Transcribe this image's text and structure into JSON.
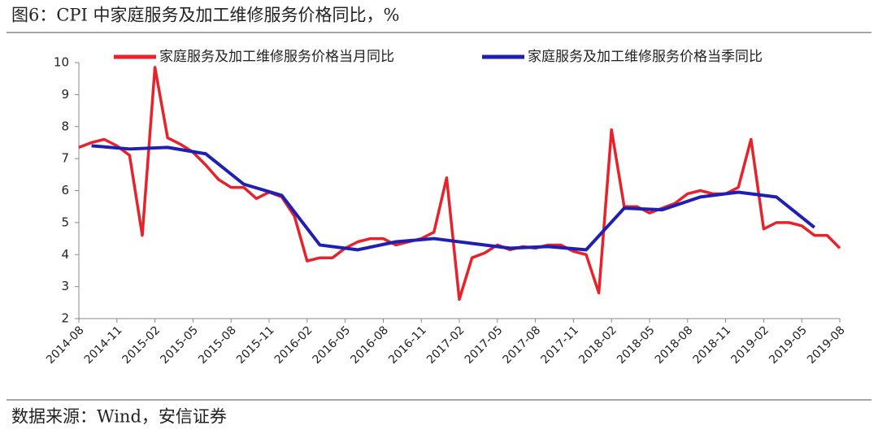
{
  "chart_data": {
    "type": "line",
    "title": "图6：CPI 中家庭服务及加工维修服务价格同比，%",
    "source": "数据来源：Wind，安信证券",
    "xlim": [
      "2014-08",
      "2019-08"
    ],
    "xticks": [
      "2014-08",
      "2014-11",
      "2015-02",
      "2015-05",
      "2015-08",
      "2015-11",
      "2016-02",
      "2016-05",
      "2016-08",
      "2016-11",
      "2017-02",
      "2017-05",
      "2017-08",
      "2017-11",
      "2018-02",
      "2018-05",
      "2018-08",
      "2018-11",
      "2019-02",
      "2019-05",
      "2019-08"
    ],
    "ylim": [
      2,
      10
    ],
    "yticks": [
      2,
      3,
      4,
      5,
      6,
      7,
      8,
      9,
      10
    ],
    "legend": "top",
    "series": [
      {
        "name": "家庭服务及加工维修服务价格当月同比",
        "color": "#e8222a",
        "x": [
          "2014-08",
          "2014-09",
          "2014-10",
          "2014-11",
          "2014-12",
          "2015-01",
          "2015-02",
          "2015-03",
          "2015-04",
          "2015-05",
          "2015-06",
          "2015-07",
          "2015-08",
          "2015-09",
          "2015-10",
          "2015-11",
          "2015-12",
          "2016-01",
          "2016-02",
          "2016-03",
          "2016-04",
          "2016-05",
          "2016-06",
          "2016-07",
          "2016-08",
          "2016-09",
          "2016-10",
          "2016-11",
          "2016-12",
          "2017-01",
          "2017-02",
          "2017-03",
          "2017-04",
          "2017-05",
          "2017-06",
          "2017-07",
          "2017-08",
          "2017-09",
          "2017-10",
          "2017-11",
          "2017-12",
          "2018-01",
          "2018-02",
          "2018-03",
          "2018-04",
          "2018-05",
          "2018-06",
          "2018-07",
          "2018-08",
          "2018-09",
          "2018-10",
          "2018-11",
          "2018-12",
          "2019-01",
          "2019-02",
          "2019-03",
          "2019-04",
          "2019-05",
          "2019-06",
          "2019-07",
          "2019-08"
        ],
        "values": [
          7.35,
          7.5,
          7.6,
          7.4,
          7.1,
          4.6,
          9.85,
          7.65,
          7.45,
          7.2,
          6.8,
          6.35,
          6.1,
          6.1,
          5.75,
          5.95,
          5.8,
          5.2,
          3.8,
          3.9,
          3.9,
          4.2,
          4.4,
          4.5,
          4.5,
          4.3,
          4.4,
          4.5,
          4.7,
          6.4,
          2.6,
          3.9,
          4.05,
          4.3,
          4.15,
          4.25,
          4.2,
          4.3,
          4.3,
          4.1,
          4.0,
          2.8,
          7.9,
          5.5,
          5.5,
          5.3,
          5.45,
          5.6,
          5.9,
          6.0,
          5.9,
          5.9,
          6.1,
          7.6,
          4.8,
          5.0,
          5.0,
          4.9,
          4.6,
          4.6,
          4.2
        ]
      },
      {
        "name": "家庭服务及加工维修服务价格当季同比",
        "color": "#1f1fb4",
        "x": [
          "2014-09",
          "2014-12",
          "2015-03",
          "2015-06",
          "2015-09",
          "2015-12",
          "2016-03",
          "2016-06",
          "2016-09",
          "2016-12",
          "2017-03",
          "2017-06",
          "2017-09",
          "2017-12",
          "2018-03",
          "2018-06",
          "2018-09",
          "2018-12",
          "2019-03",
          "2019-06"
        ],
        "values": [
          7.4,
          7.3,
          7.35,
          7.15,
          6.2,
          5.85,
          4.3,
          4.15,
          4.4,
          4.5,
          4.35,
          4.2,
          4.25,
          4.15,
          5.45,
          5.4,
          5.8,
          5.95,
          5.8,
          4.85
        ]
      }
    ]
  }
}
